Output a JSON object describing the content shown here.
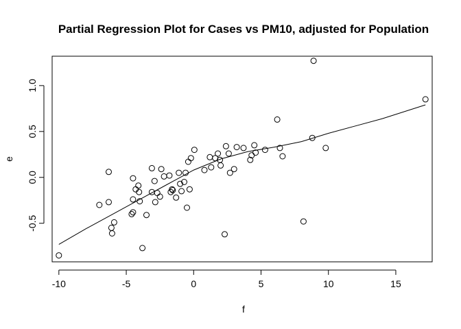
{
  "chart_data": {
    "type": "scatter",
    "title": "Partial Regression Plot for Cases vs PM10, adjusted for Population",
    "xlabel": "f",
    "ylabel": "e",
    "xlim": [
      -10.5,
      17.7
    ],
    "ylim": [
      -0.92,
      1.32
    ],
    "x_ticks": [
      -10,
      -5,
      0,
      5,
      10,
      15
    ],
    "x_tick_labels": [
      "-10",
      "-5",
      "0",
      "5",
      "10",
      "15"
    ],
    "y_ticks": [
      -0.5,
      0.0,
      0.5,
      1.0
    ],
    "y_tick_labels": [
      "-0.5",
      "0.0",
      "0.5",
      "1.0"
    ],
    "grid": false,
    "points": [
      {
        "x": -10.0,
        "y": -0.85
      },
      {
        "x": -7.0,
        "y": -0.3
      },
      {
        "x": -6.3,
        "y": -0.27
      },
      {
        "x": -6.3,
        "y": 0.06
      },
      {
        "x": -6.1,
        "y": -0.55
      },
      {
        "x": -6.05,
        "y": -0.61
      },
      {
        "x": -5.9,
        "y": -0.49
      },
      {
        "x": -4.6,
        "y": -0.4
      },
      {
        "x": -4.5,
        "y": -0.38
      },
      {
        "x": -4.5,
        "y": -0.01
      },
      {
        "x": -4.5,
        "y": -0.24
      },
      {
        "x": -4.3,
        "y": -0.13
      },
      {
        "x": -4.1,
        "y": -0.09
      },
      {
        "x": -4.05,
        "y": -0.16
      },
      {
        "x": -4.0,
        "y": -0.26
      },
      {
        "x": -3.8,
        "y": -0.77
      },
      {
        "x": -3.5,
        "y": -0.41
      },
      {
        "x": -3.1,
        "y": 0.1
      },
      {
        "x": -3.1,
        "y": -0.16
      },
      {
        "x": -2.9,
        "y": -0.04
      },
      {
        "x": -2.85,
        "y": -0.27
      },
      {
        "x": -2.7,
        "y": -0.17
      },
      {
        "x": -2.5,
        "y": -0.21
      },
      {
        "x": -2.4,
        "y": 0.09
      },
      {
        "x": -2.2,
        "y": 0.01
      },
      {
        "x": -1.8,
        "y": 0.02
      },
      {
        "x": -1.7,
        "y": -0.16
      },
      {
        "x": -1.6,
        "y": -0.13
      },
      {
        "x": -1.55,
        "y": -0.14
      },
      {
        "x": -1.3,
        "y": -0.22
      },
      {
        "x": -1.1,
        "y": 0.05
      },
      {
        "x": -1.0,
        "y": -0.07
      },
      {
        "x": -0.9,
        "y": -0.15
      },
      {
        "x": -0.7,
        "y": -0.05
      },
      {
        "x": -0.6,
        "y": 0.05
      },
      {
        "x": -0.5,
        "y": -0.33
      },
      {
        "x": -0.4,
        "y": 0.17
      },
      {
        "x": -0.3,
        "y": -0.13
      },
      {
        "x": -0.2,
        "y": 0.21
      },
      {
        "x": 0.05,
        "y": 0.3
      },
      {
        "x": 0.8,
        "y": 0.08
      },
      {
        "x": 1.2,
        "y": 0.22
      },
      {
        "x": 1.3,
        "y": 0.11
      },
      {
        "x": 1.6,
        "y": 0.21
      },
      {
        "x": 1.8,
        "y": 0.26
      },
      {
        "x": 1.95,
        "y": 0.19
      },
      {
        "x": 2.0,
        "y": 0.13
      },
      {
        "x": 2.3,
        "y": -0.62
      },
      {
        "x": 2.4,
        "y": 0.34
      },
      {
        "x": 2.6,
        "y": 0.26
      },
      {
        "x": 2.7,
        "y": 0.05
      },
      {
        "x": 3.0,
        "y": 0.09
      },
      {
        "x": 3.2,
        "y": 0.33
      },
      {
        "x": 3.7,
        "y": 0.32
      },
      {
        "x": 4.2,
        "y": 0.19
      },
      {
        "x": 4.3,
        "y": 0.24
      },
      {
        "x": 4.5,
        "y": 0.35
      },
      {
        "x": 4.6,
        "y": 0.27
      },
      {
        "x": 5.3,
        "y": 0.3
      },
      {
        "x": 6.2,
        "y": 0.63
      },
      {
        "x": 6.4,
        "y": 0.32
      },
      {
        "x": 6.6,
        "y": 0.23
      },
      {
        "x": 8.15,
        "y": -0.48
      },
      {
        "x": 8.8,
        "y": 0.43
      },
      {
        "x": 8.9,
        "y": 1.27
      },
      {
        "x": 9.8,
        "y": 0.32
      },
      {
        "x": 17.2,
        "y": 0.85
      }
    ],
    "smooth_line": [
      {
        "x": -10.0,
        "y": -0.73
      },
      {
        "x": -8.0,
        "y": -0.56
      },
      {
        "x": -6.0,
        "y": -0.4
      },
      {
        "x": -4.0,
        "y": -0.24
      },
      {
        "x": -2.0,
        "y": -0.08
      },
      {
        "x": 0.0,
        "y": 0.08
      },
      {
        "x": 2.0,
        "y": 0.2
      },
      {
        "x": 4.0,
        "y": 0.28
      },
      {
        "x": 6.0,
        "y": 0.33
      },
      {
        "x": 8.0,
        "y": 0.39
      },
      {
        "x": 10.0,
        "y": 0.48
      },
      {
        "x": 12.0,
        "y": 0.56
      },
      {
        "x": 14.0,
        "y": 0.64
      },
      {
        "x": 17.2,
        "y": 0.79
      }
    ]
  }
}
